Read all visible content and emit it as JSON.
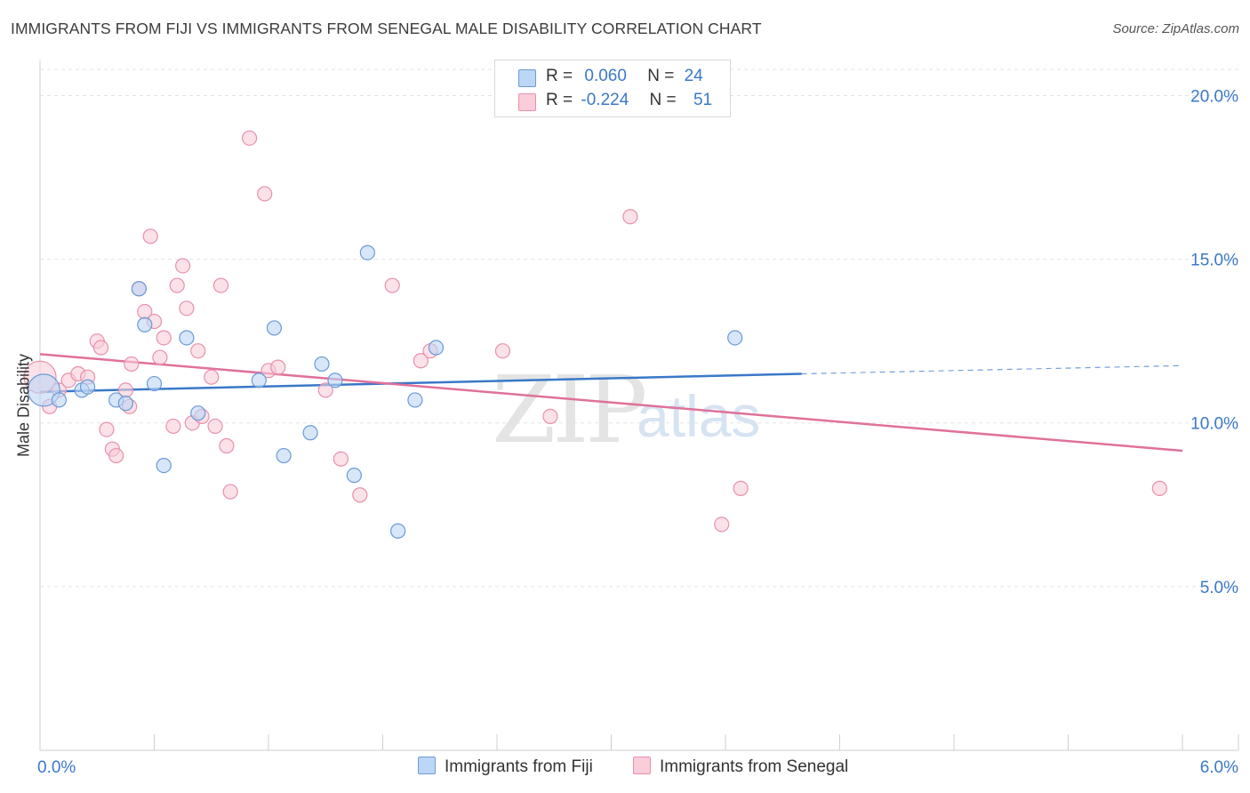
{
  "title": "IMMIGRANTS FROM FIJI VS IMMIGRANTS FROM SENEGAL MALE DISABILITY CORRELATION CHART",
  "source": "Source: ZipAtlas.com",
  "watermark": {
    "zip": "ZIP",
    "atlas": "atlas"
  },
  "legend": {
    "fiji": {
      "r_label": "R =",
      "r_value": "0.060",
      "n_label": "N =",
      "n_value": "24"
    },
    "senegal": {
      "r_label": "R =",
      "r_value": "-0.224",
      "n_label": "N =",
      "n_value": "51"
    }
  },
  "colors": {
    "fiji_fill": "#bcd6f5",
    "fiji_stroke": "#6a9ad6",
    "fiji_line": "#3a78c8",
    "senegal_fill": "#f9cdd9",
    "senegal_stroke": "#e890ac",
    "senegal_line": "#e0719a",
    "axis_text": "#3a78c8",
    "grid": "#e3e3e3"
  },
  "chart_data": {
    "type": "scatter",
    "title": "IMMIGRANTS FROM FIJI VS IMMIGRANTS FROM SENEGAL MALE DISABILITY CORRELATION CHART",
    "xlabel": "",
    "ylabel": "Male Disability",
    "xlim": [
      0,
      6
    ],
    "ylim": [
      0,
      20.8
    ],
    "x_tick_labels": [
      "0.0%",
      "6.0%"
    ],
    "y_ticks": [
      5,
      10,
      15,
      20
    ],
    "y_tick_labels": [
      "5.0%",
      "10.0%",
      "15.0%",
      "20.0%"
    ],
    "grid": true,
    "series": [
      {
        "name": "Immigrants from Fiji",
        "color": "#6a9ad6",
        "points": [
          [
            0.02,
            11.0,
            3
          ],
          [
            0.1,
            10.7,
            1
          ],
          [
            0.22,
            11.0,
            1
          ],
          [
            0.25,
            11.1,
            1
          ],
          [
            0.4,
            10.7,
            1
          ],
          [
            0.45,
            10.6,
            1
          ],
          [
            0.52,
            14.1,
            1
          ],
          [
            0.55,
            13.0,
            1
          ],
          [
            0.6,
            11.2,
            1
          ],
          [
            0.65,
            8.7,
            1
          ],
          [
            0.77,
            12.6,
            1
          ],
          [
            0.83,
            10.3,
            1
          ],
          [
            1.15,
            11.3,
            1
          ],
          [
            1.23,
            12.9,
            1
          ],
          [
            1.28,
            9.0,
            1
          ],
          [
            1.42,
            9.7,
            1
          ],
          [
            1.48,
            11.8,
            1
          ],
          [
            1.55,
            11.3,
            1
          ],
          [
            1.65,
            8.4,
            1
          ],
          [
            1.72,
            15.2,
            1
          ],
          [
            1.88,
            6.7,
            1
          ],
          [
            1.97,
            10.7,
            1
          ],
          [
            2.08,
            12.3,
            1
          ],
          [
            3.65,
            12.6,
            1
          ]
        ],
        "trend": {
          "x": [
            0,
            4.0
          ],
          "y": [
            10.95,
            11.5
          ],
          "dashed_extension": {
            "x": [
              4.0,
              6.0
            ],
            "y": [
              11.5,
              11.75
            ]
          }
        }
      },
      {
        "name": "Immigrants from Senegal",
        "color": "#e890ac",
        "points": [
          [
            0.0,
            11.4,
            3
          ],
          [
            0.05,
            10.5,
            1
          ],
          [
            0.1,
            11.0,
            1
          ],
          [
            0.15,
            11.3,
            1
          ],
          [
            0.2,
            11.5,
            1
          ],
          [
            0.25,
            11.4,
            1
          ],
          [
            0.3,
            12.5,
            1
          ],
          [
            0.32,
            12.3,
            1
          ],
          [
            0.35,
            9.8,
            1
          ],
          [
            0.38,
            9.2,
            1
          ],
          [
            0.4,
            9.0,
            1
          ],
          [
            0.45,
            11.0,
            1
          ],
          [
            0.47,
            10.5,
            1
          ],
          [
            0.48,
            11.8,
            1
          ],
          [
            0.52,
            14.1,
            1
          ],
          [
            0.55,
            13.4,
            1
          ],
          [
            0.58,
            15.7,
            1
          ],
          [
            0.6,
            13.1,
            1
          ],
          [
            0.63,
            12.0,
            1
          ],
          [
            0.65,
            12.6,
            1
          ],
          [
            0.7,
            9.9,
            1
          ],
          [
            0.72,
            14.2,
            1
          ],
          [
            0.75,
            14.8,
            1
          ],
          [
            0.77,
            13.5,
            1
          ],
          [
            0.8,
            10.0,
            1
          ],
          [
            0.83,
            12.2,
            1
          ],
          [
            0.85,
            10.2,
            1
          ],
          [
            0.9,
            11.4,
            1
          ],
          [
            0.92,
            9.9,
            1
          ],
          [
            0.95,
            14.2,
            1
          ],
          [
            0.98,
            9.3,
            1
          ],
          [
            1.0,
            7.9,
            1
          ],
          [
            1.1,
            18.7,
            1
          ],
          [
            1.18,
            17.0,
            1
          ],
          [
            1.2,
            11.6,
            1
          ],
          [
            1.25,
            11.7,
            1
          ],
          [
            1.5,
            11.0,
            1
          ],
          [
            1.58,
            8.9,
            1
          ],
          [
            1.68,
            7.8,
            1
          ],
          [
            1.85,
            14.2,
            1
          ],
          [
            2.0,
            11.9,
            1
          ],
          [
            2.05,
            12.2,
            1
          ],
          [
            2.43,
            12.2,
            1
          ],
          [
            2.68,
            10.2,
            1
          ],
          [
            3.1,
            16.3,
            1
          ],
          [
            3.58,
            6.9,
            1
          ],
          [
            3.68,
            8.0,
            1
          ],
          [
            5.88,
            8.0,
            1
          ]
        ],
        "trend": {
          "x": [
            0,
            6.0
          ],
          "y": [
            12.1,
            9.15
          ]
        }
      }
    ]
  },
  "axes": {
    "y_label": "Male Disability",
    "x_min_label": "0.0%",
    "x_max_label": "6.0%"
  },
  "bottom_legend": {
    "fiji": "Immigrants from Fiji",
    "senegal": "Immigrants from Senegal"
  }
}
